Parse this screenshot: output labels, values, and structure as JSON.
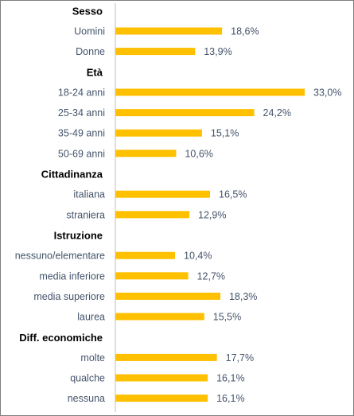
{
  "chart_data": {
    "type": "bar",
    "orientation": "horizontal",
    "bar_color": "#ffc000",
    "axis_color": "#bfbfbf",
    "label_color": "#44546a",
    "xlim": [
      0,
      33.0
    ],
    "groups": [
      {
        "name": "Sesso",
        "items": [
          {
            "label": "Uomini",
            "value": 18.6,
            "value_label": "18,6%"
          },
          {
            "label": "Donne",
            "value": 13.9,
            "value_label": "13,9%"
          }
        ]
      },
      {
        "name": "Età",
        "items": [
          {
            "label": "18-24 anni",
            "value": 33.0,
            "value_label": "33,0%"
          },
          {
            "label": "25-34 anni",
            "value": 24.2,
            "value_label": "24,2%"
          },
          {
            "label": "35-49 anni",
            "value": 15.1,
            "value_label": "15,1%"
          },
          {
            "label": "50-69 anni",
            "value": 10.6,
            "value_label": "10,6%"
          }
        ]
      },
      {
        "name": "Cittadinanza",
        "items": [
          {
            "label": "italiana",
            "value": 16.5,
            "value_label": "16,5%"
          },
          {
            "label": "straniera",
            "value": 12.9,
            "value_label": "12,9%"
          }
        ]
      },
      {
        "name": "Istruzione",
        "items": [
          {
            "label": "nessuno/elementare",
            "value": 10.4,
            "value_label": "10,4%"
          },
          {
            "label": "media inferiore",
            "value": 12.7,
            "value_label": "12,7%"
          },
          {
            "label": "media superiore",
            "value": 18.3,
            "value_label": "18,3%"
          },
          {
            "label": "laurea",
            "value": 15.5,
            "value_label": "15,5%"
          }
        ]
      },
      {
        "name": "Diff. economiche",
        "items": [
          {
            "label": "molte",
            "value": 17.7,
            "value_label": "17,7%"
          },
          {
            "label": "qualche",
            "value": 16.1,
            "value_label": "16,1%"
          },
          {
            "label": "nessuna",
            "value": 16.1,
            "value_label": "16,1%"
          }
        ]
      }
    ]
  }
}
